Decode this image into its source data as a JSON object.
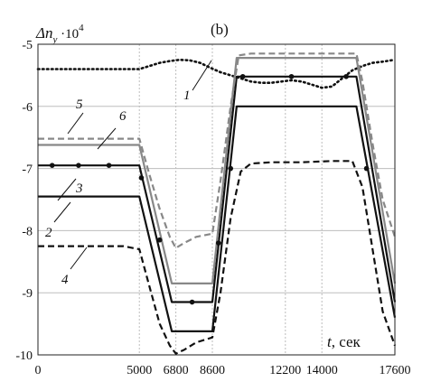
{
  "chart_data": {
    "type": "line",
    "panel_label": "(b)",
    "ylabel_main": "Δn",
    "ylabel_sub": "y",
    "ylabel_suffix": " ·10",
    "ylabel_exp": "4",
    "xlabel_var": "t",
    "xlabel_unit": ", сек",
    "xlim": [
      0,
      17600
    ],
    "ylim": [
      -10,
      -5
    ],
    "xticks": [
      0,
      5000,
      6800,
      8600,
      12200,
      14000,
      17600
    ],
    "yticks": [
      -5,
      -6,
      -7,
      -8,
      -9,
      -10
    ],
    "grid": true,
    "series": [
      {
        "name": "1",
        "style": "dotted",
        "color": "#111111",
        "x": [
          0,
          1000,
          2000,
          3000,
          4000,
          5000,
          5500,
          6000,
          6500,
          7000,
          7500,
          8000,
          8500,
          9000,
          9500,
          10000,
          10500,
          11000,
          11500,
          12000,
          12500,
          13000,
          13500,
          14000,
          14500,
          15000,
          15500,
          16000,
          16500,
          17000,
          17600
        ],
        "values": [
          -5.4,
          -5.4,
          -5.4,
          -5.4,
          -5.4,
          -5.4,
          -5.35,
          -5.3,
          -5.27,
          -5.25,
          -5.26,
          -5.3,
          -5.38,
          -5.45,
          -5.5,
          -5.55,
          -5.6,
          -5.62,
          -5.62,
          -5.6,
          -5.58,
          -5.6,
          -5.65,
          -5.7,
          -5.68,
          -5.55,
          -5.42,
          -5.35,
          -5.3,
          -5.28,
          -5.25
        ]
      },
      {
        "name": "2",
        "style": "solid",
        "color": "#111111",
        "x": [
          0,
          5000,
          6600,
          8600,
          9800,
          15700,
          17600
        ],
        "values": [
          -7.45,
          -7.45,
          -9.62,
          -9.62,
          -6.0,
          -6.0,
          -9.4
        ]
      },
      {
        "name": "3",
        "style": "solid-markers",
        "color": "#111111",
        "x": [
          0,
          5000,
          6600,
          8600,
          9800,
          15700,
          17600
        ],
        "values": [
          -6.95,
          -6.95,
          -9.15,
          -9.15,
          -5.52,
          -5.52,
          -9.15
        ],
        "markers": [
          {
            "x": 700,
            "y": -6.95
          },
          {
            "x": 2000,
            "y": -6.95
          },
          {
            "x": 3500,
            "y": -6.95
          },
          {
            "x": 5100,
            "y": -7.15
          },
          {
            "x": 6000,
            "y": -8.15
          },
          {
            "x": 7600,
            "y": -9.15
          },
          {
            "x": 8900,
            "y": -8.2
          },
          {
            "x": 9500,
            "y": -7.0
          },
          {
            "x": 10100,
            "y": -5.52
          },
          {
            "x": 12500,
            "y": -5.52
          },
          {
            "x": 15200,
            "y": -5.52
          },
          {
            "x": 16200,
            "y": -7.0
          }
        ]
      },
      {
        "name": "4",
        "style": "dashed",
        "color": "#111111",
        "x": [
          0,
          4200,
          5000,
          5500,
          6000,
          6500,
          6800,
          7200,
          7800,
          8600,
          9000,
          9500,
          10000,
          10500,
          11500,
          13000,
          14500,
          15500,
          16000,
          16500,
          17000,
          17600
        ],
        "values": [
          -8.25,
          -8.25,
          -8.3,
          -8.9,
          -9.5,
          -9.85,
          -9.98,
          -9.92,
          -9.8,
          -9.72,
          -9.0,
          -7.8,
          -7.05,
          -6.92,
          -6.9,
          -6.9,
          -6.88,
          -6.88,
          -7.3,
          -8.3,
          -9.3,
          -9.85
        ]
      },
      {
        "name": "5",
        "style": "dashed",
        "color": "#888888",
        "x": [
          0,
          5000,
          5500,
          6000,
          6500,
          6800,
          7200,
          7800,
          8600,
          9000,
          9500,
          9900,
          10500,
          12000,
          14000,
          15700,
          16000,
          16500,
          17000,
          17600
        ],
        "values": [
          -6.52,
          -6.52,
          -7.1,
          -7.65,
          -8.1,
          -8.28,
          -8.2,
          -8.1,
          -8.05,
          -7.2,
          -6.0,
          -5.18,
          -5.15,
          -5.15,
          -5.15,
          -5.15,
          -5.6,
          -6.6,
          -7.5,
          -8.1
        ]
      },
      {
        "name": "6",
        "style": "solid",
        "color": "#888888",
        "x": [
          0,
          5000,
          6600,
          8600,
          9800,
          15700,
          17600
        ],
        "values": [
          -6.62,
          -6.62,
          -8.85,
          -8.85,
          -5.22,
          -5.22,
          -8.85
        ]
      }
    ]
  }
}
